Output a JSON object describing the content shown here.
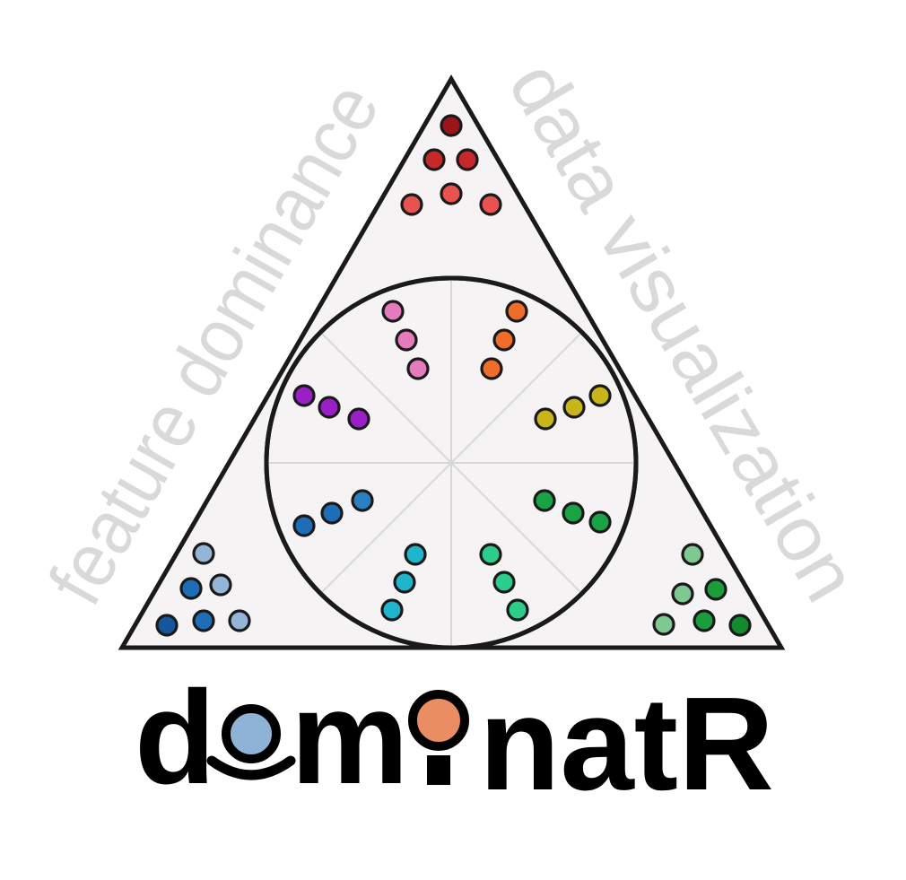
{
  "labels": {
    "left": "feature dominance",
    "right": "data visualization"
  },
  "wordmark": {
    "part1": "d",
    "part2": "m",
    "part3": "natR",
    "o_circle_color": "#8fb3d6",
    "i_circle_color": "#ea8d62"
  },
  "colors": {
    "triangle_fill": "#f5f3f4",
    "outline": "#1a1a1a",
    "spokes": "#d7d7d7",
    "side_label": "#d9d9d9"
  },
  "dot_groups": [
    {
      "name": "top-corner-reds",
      "colors": [
        "#9b1418",
        "#c7282a",
        "#c7282a",
        "#e9534f",
        "#e9534f",
        "#e9534f"
      ]
    },
    {
      "name": "left-corner-blues",
      "colors": [
        "#92b5d8",
        "#1f6db6",
        "#92b5d8",
        "#14579e",
        "#1f6db6",
        "#92b5d8"
      ]
    },
    {
      "name": "right-corner-greens",
      "colors": [
        "#7fc88f",
        "#7fc88f",
        "#1a9e3c",
        "#7fc88f",
        "#1a9e3c",
        "#138a30"
      ]
    },
    {
      "name": "spoke-pink",
      "colors": [
        "#e57bbd",
        "#e57bbd",
        "#e57bbd"
      ]
    },
    {
      "name": "spoke-orange",
      "colors": [
        "#ef6c2a",
        "#ef6c2a",
        "#ef6c2a"
      ]
    },
    {
      "name": "spoke-purple",
      "colors": [
        "#9b1fc7",
        "#9b1fc7",
        "#9b1fc7"
      ]
    },
    {
      "name": "spoke-yellow",
      "colors": [
        "#c9b51a",
        "#c9b51a",
        "#c9b51a"
      ]
    },
    {
      "name": "spoke-blue",
      "colors": [
        "#1f6db6",
        "#1f6db6",
        "#2a80c2"
      ]
    },
    {
      "name": "spoke-green",
      "colors": [
        "#1aa344",
        "#1aa344",
        "#1aa344"
      ]
    },
    {
      "name": "spoke-cyan",
      "colors": [
        "#1fb5cc",
        "#1fb5cc",
        "#1fb5cc"
      ]
    },
    {
      "name": "spoke-teal",
      "colors": [
        "#2ccc8a",
        "#2ccc8a",
        "#2ccc8a"
      ]
    }
  ]
}
